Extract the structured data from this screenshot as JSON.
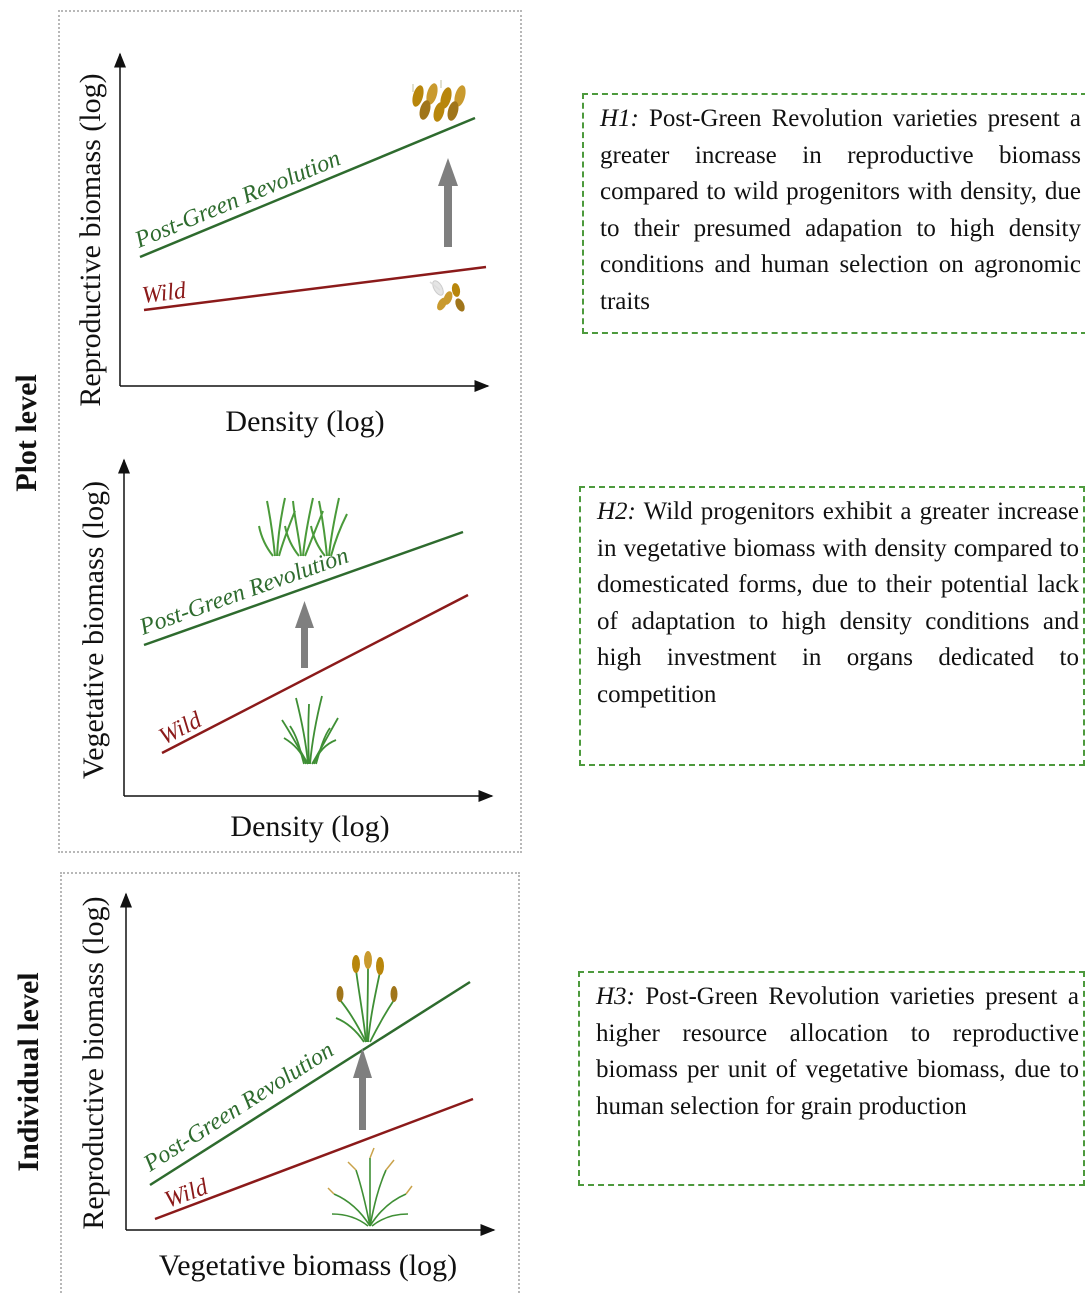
{
  "sections": {
    "plot_level": "Plot level",
    "individual_level": "Individual level"
  },
  "panels": [
    {
      "id": "h1",
      "xlabel": "Density (log)",
      "ylabel": "Reproductive biomass (log)",
      "series": [
        {
          "name": "Post-Green Revolution",
          "color": "#2e6b2e"
        },
        {
          "name": "Wild",
          "color": "#8b1a1a"
        }
      ],
      "arrow_icon": "up-arrow-icon",
      "top_icon": "grain-heads-icon",
      "bottom_icon": "wild-seeds-icon"
    },
    {
      "id": "h2",
      "xlabel": "Density (log)",
      "ylabel": "Vegetative biomass (log)",
      "series": [
        {
          "name": "Post-Green Revolution",
          "color": "#2e6b2e"
        },
        {
          "name": "Wild",
          "color": "#8b1a1a"
        }
      ],
      "arrow_icon": "up-arrow-icon",
      "top_icon": "wheat-plants-icon",
      "bottom_icon": "grass-tuft-icon"
    },
    {
      "id": "h3",
      "xlabel": "Vegetative biomass (log)",
      "ylabel": "Reproductive biomass (log)",
      "series": [
        {
          "name": "Post-Green Revolution",
          "color": "#2e6b2e"
        },
        {
          "name": "Wild",
          "color": "#8b1a1a"
        }
      ],
      "arrow_icon": "up-arrow-icon",
      "top_icon": "wheat-plant-with-ears-icon",
      "bottom_icon": "wild-grass-icon"
    }
  ],
  "hypotheses": [
    {
      "id": "H1:",
      "text": "Post-Green Revolution varieties present a greater increase in reproductive biomass compared to wild progenitors with density, due to their presumed adapation to high density conditions and human selection on agronomic traits"
    },
    {
      "id": "H2:",
      "text": "Wild progenitors exhibit a greater increase in  vegetative biomass with density compared to domesticated forms, due to their potential lack of adaptation to high density conditions and high investment in organs dedicated to competition"
    },
    {
      "id": "H3:",
      "text": "Post-Green Revolution varieties present a higher resource allocation to reproductive biomass per unit of vegetative biomass, due to human selection  for grain production"
    }
  ],
  "colors": {
    "post_green_revolution": "#2e6b2e",
    "wild": "#8b1a1a",
    "arrow": "#7f7f7f",
    "hypothesis_border": "#4d9a3d"
  }
}
